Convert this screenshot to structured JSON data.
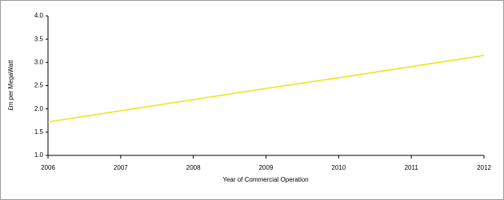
{
  "chart_data": {
    "type": "line",
    "x_label": "Year of Commercial Operation",
    "y_label": "£m per MegaWatt",
    "x": [
      2006,
      2007,
      2008,
      2009,
      2010,
      2011,
      2012
    ],
    "series": [
      {
        "color": "#f2e21a",
        "values": [
          1.72,
          1.96,
          2.2,
          2.44,
          2.67,
          2.91,
          3.15
        ]
      }
    ],
    "xlim": [
      2006,
      2012
    ],
    "xticks": [
      2006,
      2007,
      2008,
      2009,
      2010,
      2011,
      2012
    ],
    "ylim": [
      1,
      4
    ],
    "yticks": [
      {
        "value": 1,
        "label": "1.0"
      },
      {
        "value": 1.5,
        "label": "1.5"
      },
      {
        "value": 2,
        "label": "2.0"
      },
      {
        "value": 2.5,
        "label": "2.5"
      },
      {
        "value": 3,
        "label": "3.0"
      },
      {
        "value": 3.5,
        "label": "3.5"
      },
      {
        "value": 4,
        "label": "4.0"
      }
    ],
    "grid": false
  }
}
